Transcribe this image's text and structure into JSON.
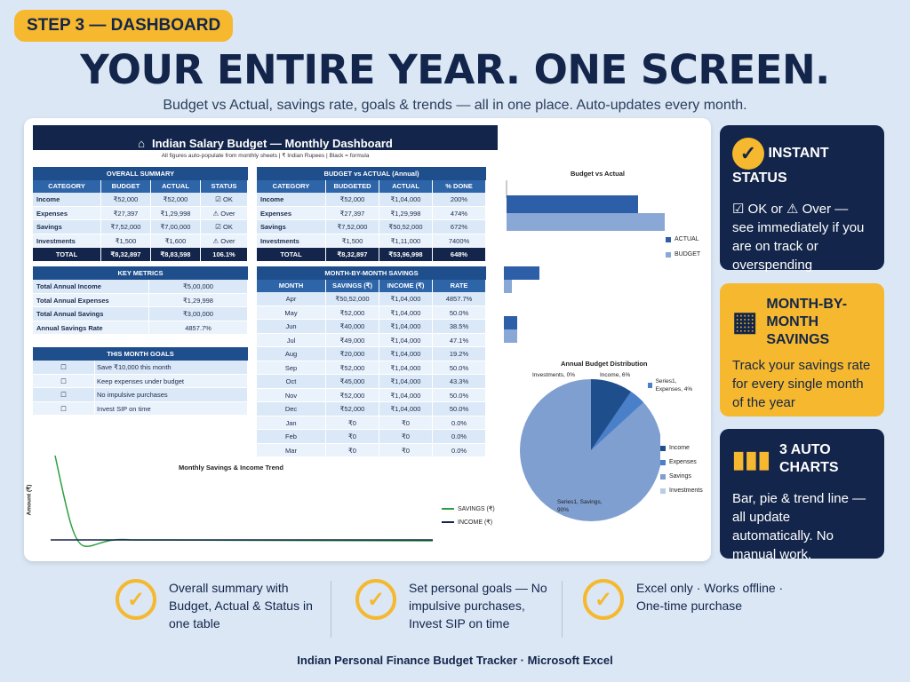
{
  "badge": "STEP 3 — DASHBOARD",
  "headline": "YOUR ENTIRE YEAR. ONE SCREEN.",
  "subline": "Budget vs Actual, savings rate, goals & trends — all in one place. Auto-updates every month.",
  "dash": {
    "title": "Indian Salary Budget — Monthly Dashboard",
    "sub": "All figures auto-populate from monthly sheets | ₹ Indian Rupees | Black = formula"
  },
  "overall": {
    "title": "OVERALL SUMMARY",
    "headers": [
      "CATEGORY",
      "BUDGET",
      "ACTUAL",
      "STATUS"
    ],
    "rows": [
      [
        "Income",
        "₹52,000",
        "₹52,000",
        "☑ OK"
      ],
      [
        "Expenses",
        "₹27,397",
        "₹1,29,998",
        "⚠ Over"
      ],
      [
        "Savings",
        "₹7,52,000",
        "₹7,00,000",
        "☑ OK"
      ],
      [
        "Investments",
        "₹1,500",
        "₹1,600",
        "⚠ Over"
      ]
    ],
    "total": [
      "TOTAL",
      "₹8,32,897",
      "₹8,83,598",
      "106.1%"
    ]
  },
  "bva": {
    "title": "BUDGET vs ACTUAL (Annual)",
    "headers": [
      "CATEGORY",
      "BUDGETED",
      "ACTUAL",
      "% DONE"
    ],
    "rows": [
      [
        "Income",
        "₹52,000",
        "₹1,04,000",
        "200%"
      ],
      [
        "Expenses",
        "₹27,397",
        "₹1,29,998",
        "474%"
      ],
      [
        "Savings",
        "₹7,52,000",
        "₹50,52,000",
        "672%"
      ],
      [
        "Investments",
        "₹1,500",
        "₹1,11,000",
        "7400%"
      ]
    ],
    "total": [
      "TOTAL",
      "₹8,32,897",
      "₹53,96,998",
      "648%"
    ]
  },
  "metrics": {
    "title": "KEY METRICS",
    "rows": [
      [
        "Total Annual Income",
        "₹5,00,000"
      ],
      [
        "Total Annual Expenses",
        "₹1,29,998"
      ],
      [
        "Total Annual Savings",
        "₹3,00,000"
      ],
      [
        "Annual Savings Rate",
        "4857.7%"
      ]
    ]
  },
  "goals": {
    "title": "THIS MONTH GOALS",
    "rows": [
      "Save ₹10,000 this month",
      "Keep expenses under budget",
      "No impulsive purchases",
      "Invest SIP on time"
    ]
  },
  "mbm": {
    "title": "MONTH-BY-MONTH SAVINGS",
    "headers": [
      "MONTH",
      "SAVINGS (₹)",
      "INCOME (₹)",
      "RATE"
    ],
    "rows": [
      [
        "Apr",
        "₹50,52,000",
        "₹1,04,000",
        "4857.7%"
      ],
      [
        "May",
        "₹52,000",
        "₹1,04,000",
        "50.0%"
      ],
      [
        "Jun",
        "₹40,000",
        "₹1,04,000",
        "38.5%"
      ],
      [
        "Jul",
        "₹49,000",
        "₹1,04,000",
        "47.1%"
      ],
      [
        "Aug",
        "₹20,000",
        "₹1,04,000",
        "19.2%"
      ],
      [
        "Sep",
        "₹52,000",
        "₹1,04,000",
        "50.0%"
      ],
      [
        "Oct",
        "₹45,000",
        "₹1,04,000",
        "43.3%"
      ],
      [
        "Nov",
        "₹52,000",
        "₹1,04,000",
        "50.0%"
      ],
      [
        "Dec",
        "₹52,000",
        "₹1,04,000",
        "50.0%"
      ],
      [
        "Jan",
        "₹0",
        "₹0",
        "0.0%"
      ],
      [
        "Feb",
        "₹0",
        "₹0",
        "0.0%"
      ],
      [
        "Mar",
        "₹0",
        "₹0",
        "0.0%"
      ]
    ]
  },
  "bar_chart": {
    "title": "Budget vs Actual",
    "legend": [
      "ACTUAL",
      "BUDGET"
    ]
  },
  "pie_chart": {
    "title": "Annual Budget Distribution",
    "labels": [
      "Investments, 0%",
      "Income, 6%",
      "Series1, Expenses, 4%",
      "Series1, Savings, 90%"
    ],
    "legend": [
      "Income",
      "Expenses",
      "Savings",
      "Investments"
    ]
  },
  "trend_chart": {
    "title": "Monthly Savings & Income Trend",
    "ylabel": "Amount (₹)",
    "legend": [
      "SAVINGS (₹)",
      "INCOME (₹)"
    ]
  },
  "side": [
    {
      "title": "INSTANT STATUS",
      "text": "☑ OK or ⚠ Over — see immediately if you are on track or overspending"
    },
    {
      "title": "MONTH-BY-MONTH SAVINGS",
      "text": "Track your savings rate for every single month of the year"
    },
    {
      "title": "3 AUTO CHARTS",
      "text": "Bar, pie & trend line — all update automatically. No manual work."
    }
  ],
  "bottom": [
    "Overall summary with Budget, Actual & Status in one table",
    "Set personal goals — No impulsive purchases, Invest SIP on time",
    "Excel only · Works offline · One-time purchase"
  ],
  "footer": "Indian Personal Finance Budget Tracker · Microsoft Excel",
  "colors": {
    "navy": "#13254a",
    "gold": "#f5b82e",
    "blue": "#2e64a8"
  }
}
